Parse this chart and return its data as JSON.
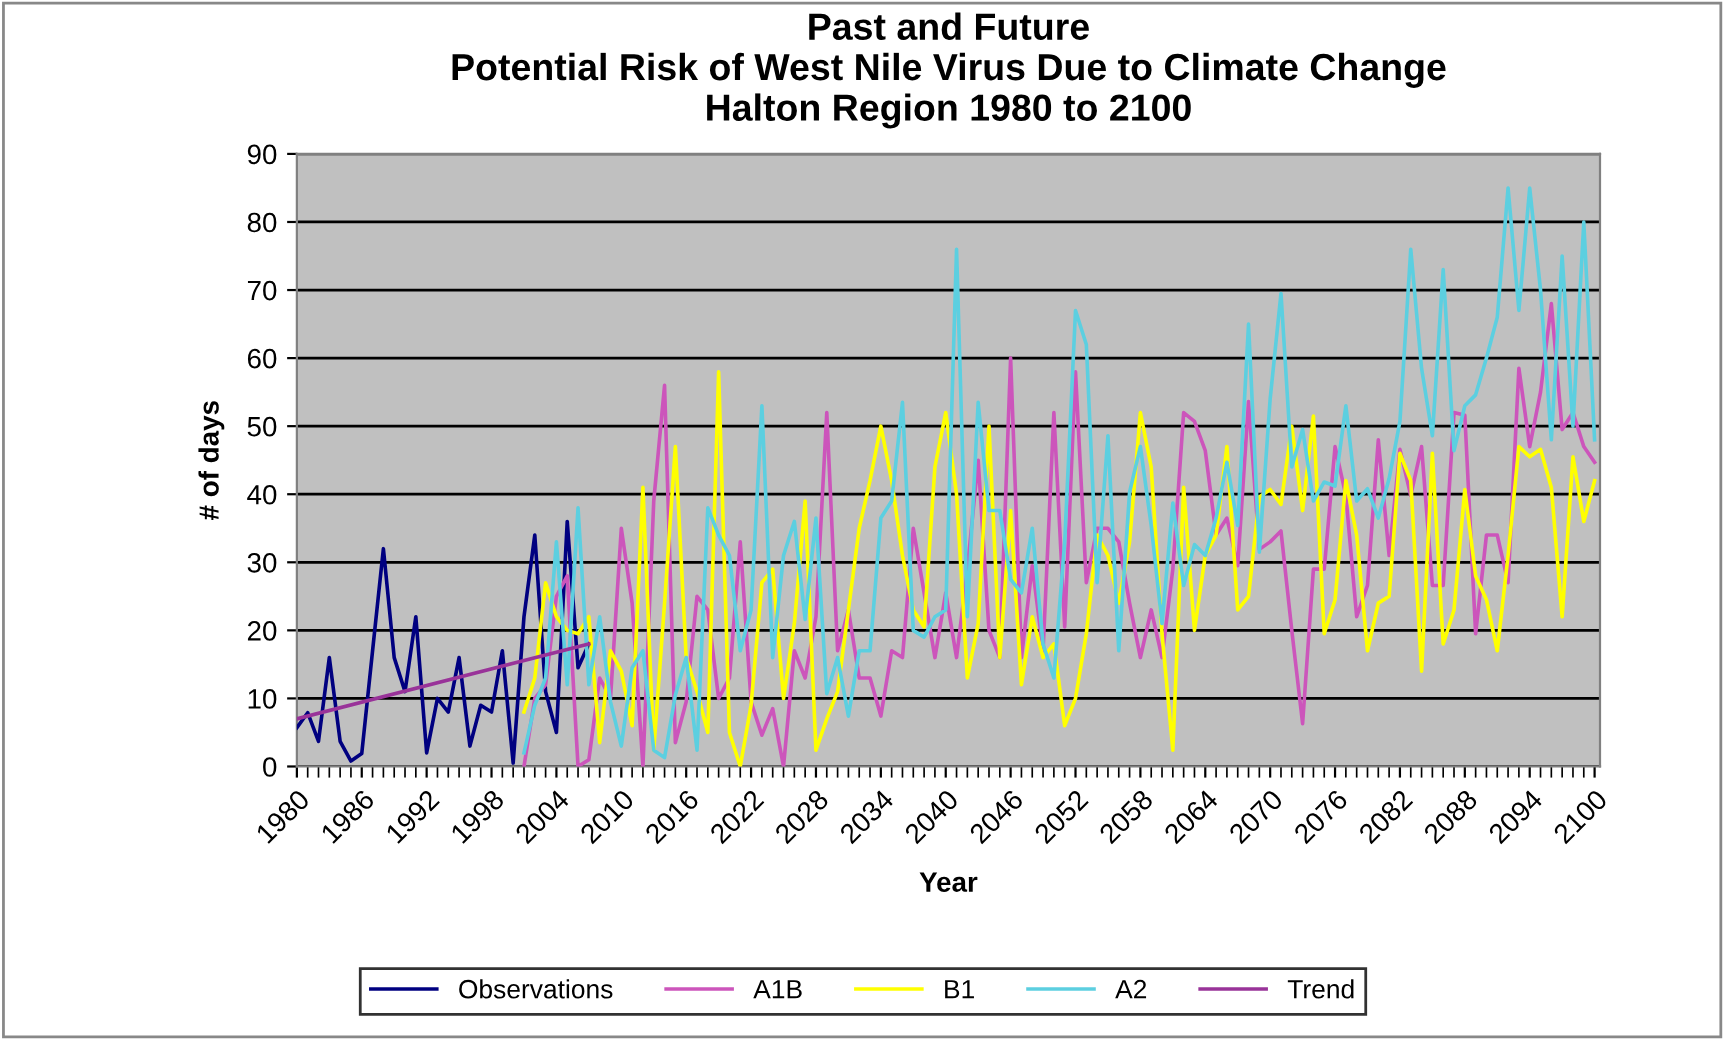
{
  "chart_data": {
    "type": "line",
    "title": "Past and Future\nPotential Risk of West Nile Virus Due to Climate Change\nHalton Region 1980 to 2100",
    "xlabel": "Year",
    "ylabel": "# of days",
    "xlim": [
      1980,
      2100.5
    ],
    "xticks": [
      1980,
      1986,
      1992,
      1998,
      2004,
      2010,
      2016,
      2022,
      2028,
      2034,
      2040,
      2046,
      2052,
      2058,
      2064,
      2070,
      2076,
      2082,
      2088,
      2094,
      2100
    ],
    "ylim": [
      0,
      90
    ],
    "yticks": [
      0,
      10,
      20,
      30,
      40,
      50,
      60,
      70,
      80,
      90
    ],
    "grid": "y",
    "legend": "bottom",
    "marker": "none",
    "line_style": "solid",
    "series": [
      {
        "name": "Observations",
        "color": "#000080",
        "x": [
          1980,
          1981,
          1982,
          1983,
          1984,
          1985,
          1986,
          1987,
          1988,
          1989,
          1990,
          1991,
          1992,
          1993,
          1994,
          1995,
          1996,
          1997,
          1998,
          1999,
          2000,
          2001,
          2002,
          2003,
          2004,
          2005,
          2006,
          2007
        ],
        "values": [
          5.7,
          7.9,
          3.7,
          16,
          3.7,
          0.8,
          1.9,
          17,
          32,
          16,
          11,
          22,
          2,
          10,
          8,
          16,
          3,
          9,
          8,
          17,
          0.5,
          22,
          34,
          11,
          5,
          36,
          14.5,
          18
        ]
      },
      {
        "name": "A1B",
        "color": "#cc55bb",
        "x": [
          2001,
          2002,
          2003,
          2004,
          2005,
          2006,
          2007,
          2008,
          2009,
          2010,
          2011,
          2012,
          2013,
          2014,
          2015,
          2016,
          2017,
          2018,
          2019,
          2020,
          2021,
          2022,
          2023,
          2024,
          2025,
          2026,
          2027,
          2028,
          2029,
          2030,
          2031,
          2032,
          2033,
          2034,
          2035,
          2036,
          2037,
          2038,
          2039,
          2040,
          2041,
          2042,
          2043,
          2044,
          2045,
          2046,
          2047,
          2048,
          2049,
          2050,
          2051,
          2052,
          2053,
          2054,
          2055,
          2056,
          2057,
          2058,
          2059,
          2060,
          2061,
          2062,
          2063,
          2064,
          2065,
          2066,
          2067,
          2068,
          2069,
          2070,
          2071,
          2072,
          2073,
          2074,
          2075,
          2076,
          2077,
          2078,
          2079,
          2080,
          2081,
          2082,
          2083,
          2084,
          2085,
          2086,
          2087,
          2088,
          2089,
          2090,
          2091,
          2092,
          2093,
          2094,
          2095,
          2096,
          2097,
          2098,
          2099,
          2100
        ],
        "values": [
          0,
          10,
          12,
          25,
          28,
          0,
          1,
          13,
          10,
          35,
          24,
          0,
          39,
          56,
          3.5,
          9.5,
          25,
          23,
          10,
          13,
          33,
          9.5,
          4.6,
          8.5,
          0,
          17,
          13,
          22,
          52,
          17,
          23,
          13,
          13,
          7.4,
          17,
          16,
          35,
          25.5,
          16,
          25.5,
          16,
          29,
          45,
          20,
          16,
          60,
          16,
          29.5,
          17,
          52,
          20.5,
          58,
          27,
          35,
          35,
          33,
          24,
          16,
          23,
          16,
          29,
          52,
          50.7,
          46.4,
          34,
          36.5,
          29.5,
          53.6,
          31.9,
          33,
          34.6,
          20,
          6.3,
          29,
          29,
          47,
          39.8,
          22,
          26.6,
          48,
          31,
          46.6,
          39.8,
          47,
          26.6,
          26.6,
          52,
          51.6,
          19.5,
          34,
          34,
          27,
          58.5,
          47,
          55,
          68,
          49.5,
          52,
          47,
          44.7
        ]
      },
      {
        "name": "B1",
        "color": "#ffff00",
        "x": [
          2001,
          2002,
          2003,
          2004,
          2005,
          2006,
          2007,
          2008,
          2009,
          2010,
          2011,
          2012,
          2013,
          2014,
          2015,
          2016,
          2017,
          2018,
          2019,
          2020,
          2021,
          2022,
          2023,
          2024,
          2025,
          2026,
          2027,
          2028,
          2029,
          2030,
          2031,
          2032,
          2033,
          2034,
          2035,
          2036,
          2037,
          2038,
          2039,
          2040,
          2041,
          2042,
          2043,
          2044,
          2045,
          2046,
          2047,
          2048,
          2049,
          2050,
          2051,
          2052,
          2053,
          2054,
          2055,
          2056,
          2057,
          2058,
          2059,
          2060,
          2061,
          2062,
          2063,
          2064,
          2065,
          2066,
          2067,
          2068,
          2069,
          2070,
          2071,
          2072,
          2073,
          2074,
          2075,
          2076,
          2077,
          2078,
          2079,
          2080,
          2081,
          2082,
          2083,
          2084,
          2085,
          2086,
          2087,
          2088,
          2089,
          2090,
          2091,
          2092,
          2093,
          2094,
          2095,
          2096,
          2097,
          2098,
          2099,
          2100
        ],
        "values": [
          8,
          13,
          27,
          22,
          20,
          19.5,
          22,
          3.5,
          17,
          14,
          6,
          41,
          2.4,
          24,
          47,
          16,
          11,
          5,
          58,
          5,
          0,
          9,
          27,
          29,
          10,
          21,
          39,
          2.4,
          7,
          11,
          23,
          35,
          42,
          50,
          42,
          31,
          23,
          20.5,
          44,
          52,
          40,
          13,
          21,
          50,
          16,
          37.6,
          12,
          22,
          16,
          18,
          6,
          10,
          19.5,
          34,
          31,
          24,
          33,
          52,
          44,
          19.5,
          2.4,
          41,
          20,
          31,
          34,
          47,
          23,
          25,
          39.6,
          40.7,
          38.5,
          50,
          37.6,
          51.5,
          19.5,
          24.5,
          42,
          34,
          17,
          24,
          25,
          46,
          42,
          14,
          46,
          18,
          23,
          40.7,
          28,
          24.5,
          17,
          31,
          47,
          45.5,
          46.6,
          41,
          22,
          45.5,
          36,
          42
        ]
      },
      {
        "name": "A2",
        "color": "#5ccfe0",
        "x": [
          2001,
          2002,
          2003,
          2004,
          2005,
          2006,
          2007,
          2008,
          2009,
          2010,
          2011,
          2012,
          2013,
          2014,
          2015,
          2016,
          2017,
          2018,
          2019,
          2020,
          2021,
          2022,
          2023,
          2024,
          2025,
          2026,
          2027,
          2028,
          2029,
          2030,
          2031,
          2032,
          2033,
          2034,
          2035,
          2036,
          2037,
          2038,
          2039,
          2040,
          2041,
          2042,
          2043,
          2044,
          2045,
          2046,
          2047,
          2048,
          2049,
          2050,
          2051,
          2052,
          2053,
          2054,
          2055,
          2056,
          2057,
          2058,
          2059,
          2060,
          2061,
          2062,
          2063,
          2064,
          2065,
          2066,
          2067,
          2068,
          2069,
          2070,
          2071,
          2072,
          2073,
          2074,
          2075,
          2076,
          2077,
          2078,
          2079,
          2080,
          2081,
          2082,
          2083,
          2084,
          2085,
          2086,
          2087,
          2088,
          2089,
          2090,
          2091,
          2092,
          2093,
          2094,
          2095,
          2096,
          2097,
          2098,
          2099,
          2100
        ],
        "values": [
          2,
          9,
          13,
          33,
          12,
          38,
          12,
          22,
          9.5,
          3,
          14.5,
          17,
          2.4,
          1.3,
          10.5,
          16,
          2.4,
          38,
          34,
          31,
          17,
          23,
          53,
          16,
          31,
          36,
          21.6,
          36.5,
          10.7,
          16,
          7.4,
          17,
          17,
          36.5,
          39,
          53.5,
          20,
          19,
          22,
          23,
          76,
          22,
          53.5,
          37.6,
          37.6,
          27.5,
          25.5,
          35,
          18,
          13,
          33,
          67,
          62,
          27,
          48.6,
          17,
          40.3,
          47,
          35.4,
          21,
          38.7,
          26.6,
          32.6,
          31,
          36.5,
          44.7,
          35.4,
          65,
          31.5,
          54,
          69.5,
          44,
          49.5,
          39,
          41.8,
          41.2,
          53,
          39,
          40.8,
          36.5,
          42.3,
          50.7,
          76,
          58.5,
          48.6,
          73,
          46.4,
          53,
          54.6,
          60,
          66,
          85,
          67,
          85,
          70,
          48,
          75,
          50,
          80,
          48
        ]
      },
      {
        "name": "Trend",
        "color": "#993399",
        "x": [
          1980,
          2007
        ],
        "values": [
          7,
          18
        ]
      }
    ]
  }
}
